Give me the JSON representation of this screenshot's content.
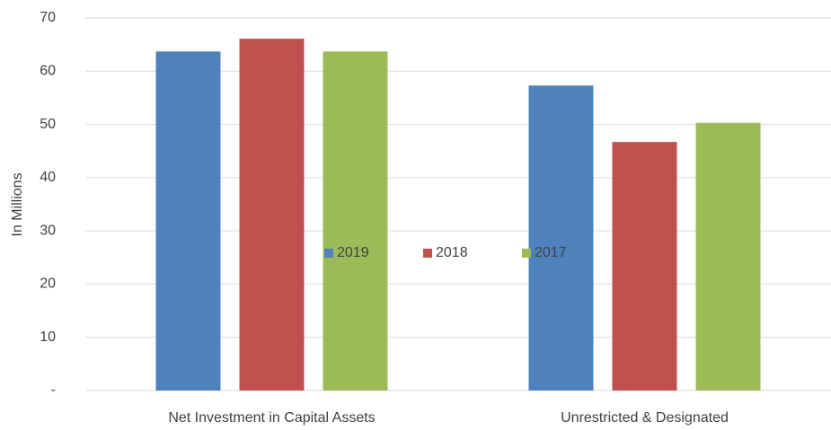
{
  "chart_data": {
    "type": "bar",
    "categories": [
      "Net Investment in Capital Assets",
      "Unrestricted & Designated"
    ],
    "series": [
      {
        "name": "2019",
        "color": "#4f81bd",
        "values": [
          63.7,
          57.3
        ]
      },
      {
        "name": "2018",
        "color": "#c0504d",
        "values": [
          66.1,
          46.7
        ]
      },
      {
        "name": "2017",
        "color": "#9bbb59",
        "values": [
          63.7,
          50.3
        ]
      }
    ],
    "y_label": "In Millions",
    "ylim": [
      0,
      70
    ],
    "yticks": [
      {
        "value": 0,
        "label": "-"
      },
      10,
      20,
      30,
      40,
      50,
      60,
      70
    ],
    "grid": true,
    "legend": "center"
  }
}
